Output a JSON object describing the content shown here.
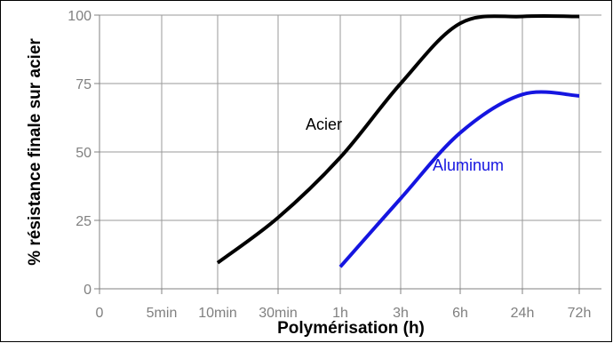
{
  "chart_data": {
    "type": "line",
    "xlabel": "Polymérisation (h)",
    "ylabel": "% résistance finale sur acier",
    "x_ticks": [
      "0",
      "5min",
      "10min",
      "30min",
      "1h",
      "3h",
      "6h",
      "24h",
      "72h"
    ],
    "y_ticks": [
      0,
      25,
      50,
      75,
      100
    ],
    "ylim": [
      0,
      100
    ],
    "grid": true,
    "series": [
      {
        "name": "Acier",
        "color": "#000000",
        "x": [
          "10min",
          "30min",
          "1h",
          "3h",
          "6h",
          "24h",
          "72h"
        ],
        "values": [
          9.5,
          26,
          48,
          75,
          97,
          99.5,
          99.5
        ]
      },
      {
        "name": "Aluminum",
        "color": "#1515e0",
        "x": [
          "1h",
          "3h",
          "6h",
          "24h",
          "72h"
        ],
        "values": [
          8,
          33,
          57,
          71,
          70.5
        ]
      }
    ]
  }
}
